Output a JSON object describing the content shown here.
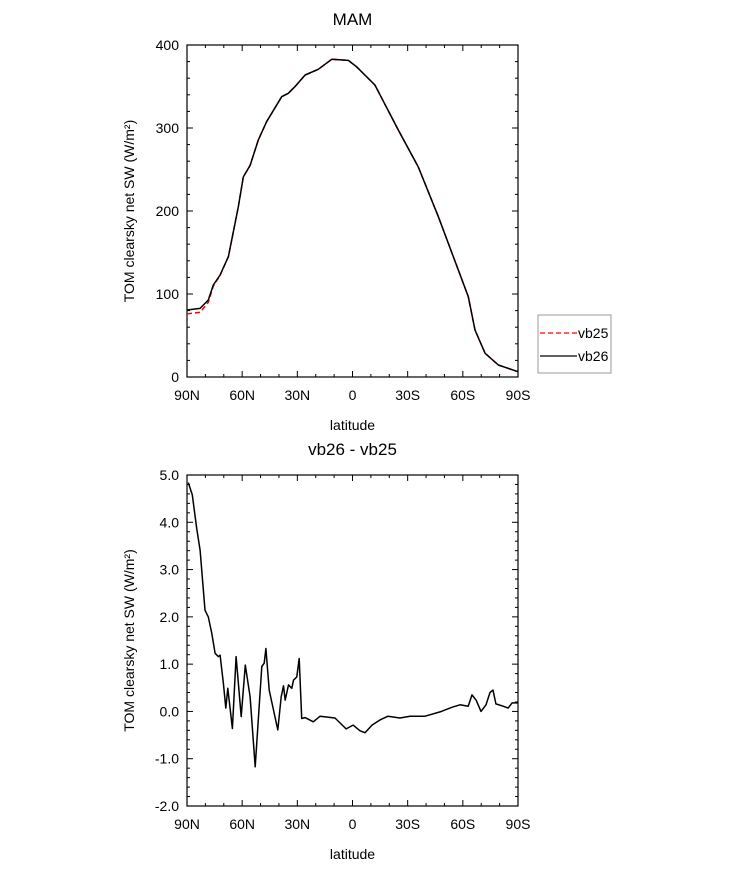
{
  "colors": {
    "vb25": "#ff0000",
    "vb26": "#000000"
  },
  "chart_data": [
    {
      "type": "line",
      "title": "MAM",
      "xlabel": "latitude",
      "ylabel": "TOM clearsky net SW (W/m²)",
      "xlim": [
        90,
        -90
      ],
      "ylim": [
        0,
        400
      ],
      "xticks": [
        90,
        60,
        30,
        0,
        -30,
        -60,
        -90
      ],
      "xtick_labels": [
        "90N",
        "60N",
        "30N",
        "0",
        "30S",
        "60S",
        "90S"
      ],
      "yticks": [
        0,
        100,
        200,
        300,
        400
      ],
      "ytick_labels": [
        "0",
        "100",
        "200",
        "300",
        "400"
      ],
      "legend": {
        "placement": "right",
        "entries": [
          "vb25",
          "vb26"
        ]
      },
      "x": [
        90,
        82.9,
        78.4,
        75.7,
        72,
        67.5,
        62.1,
        59.4,
        55.7,
        51.2,
        46.7,
        38.5,
        34.9,
        31.3,
        25.8,
        18.6,
        11.3,
        2.3,
        -2.2,
        -12.2,
        -24.9,
        -35.8,
        -46.7,
        -63,
        -66.6,
        -72.1,
        -79.3,
        -90
      ],
      "series": [
        {
          "name": "vb25",
          "style": "dashed",
          "values": [
            76,
            78,
            90,
            109.5,
            122.5,
            145,
            205,
            241,
            255,
            285.5,
            307.6,
            337.7,
            341.8,
            349.8,
            363.9,
            370.7,
            382.8,
            381.5,
            373.9,
            351.8,
            297.6,
            253,
            193,
            96.7,
            56.6,
            28.6,
            14.5,
            6.4
          ]
        },
        {
          "name": "vb26",
          "style": "solid",
          "values": [
            80.7,
            82.7,
            92.8,
            110.8,
            122.9,
            145,
            205,
            241,
            255,
            285.5,
            307.6,
            337.7,
            341.8,
            349.8,
            363.9,
            370.7,
            382.8,
            381.5,
            373.9,
            351.8,
            297.6,
            253,
            193,
            96.7,
            56.6,
            28.6,
            14.5,
            6.4
          ]
        }
      ]
    },
    {
      "type": "line",
      "title": "vb26 - vb25",
      "xlabel": "latitude",
      "ylabel": "TOM clearsky net SW (W/m²)",
      "xlim": [
        90,
        -90
      ],
      "ylim": [
        -2,
        5
      ],
      "xticks": [
        90,
        60,
        30,
        0,
        -30,
        -60,
        -90
      ],
      "xtick_labels": [
        "90N",
        "60N",
        "30N",
        "0",
        "30S",
        "60S",
        "90S"
      ],
      "yticks": [
        -2,
        -1,
        0,
        1,
        2,
        3,
        4,
        5
      ],
      "ytick_labels": [
        "-2.0",
        "-1.0",
        "0.0",
        "1.0",
        "2.0",
        "3.0",
        "4.0",
        "5.0"
      ],
      "x": [
        89.3,
        87.1,
        84.7,
        82.9,
        80.2,
        78.4,
        76.5,
        74.7,
        72.9,
        72,
        70.2,
        68.9,
        67.8,
        65.3,
        63.3,
        60.5,
        58.3,
        55.7,
        52.9,
        49.3,
        48,
        47.1,
        45.3,
        40.6,
        38.8,
        37.5,
        36.6,
        34.8,
        33,
        32.1,
        30.3,
        29,
        27.6,
        25.8,
        21.3,
        17.6,
        9.5,
        3.5,
        -0.3,
        -4.1,
        -6.8,
        -10.6,
        -15,
        -19.3,
        -25.8,
        -31.3,
        -39.5,
        -47.6,
        -54.2,
        -58.5,
        -62.9,
        -65,
        -67.2,
        -69.9,
        -72.6,
        -74.8,
        -76.4,
        -78,
        -81.9,
        -84.6,
        -86.8,
        -90
      ],
      "series": [
        {
          "name": "vb26 - vb25",
          "style": "solid",
          "values": [
            4.84,
            4.58,
            3.87,
            3.41,
            2.14,
            2.0,
            1.65,
            1.23,
            1.16,
            1.19,
            0.59,
            0.07,
            0.49,
            -0.36,
            1.16,
            -0.11,
            0.98,
            0.31,
            -1.17,
            0.95,
            1.02,
            1.33,
            0.45,
            -0.39,
            0.31,
            0.54,
            0.24,
            0.56,
            0.49,
            0.66,
            0.73,
            1.12,
            -0.15,
            -0.13,
            -0.22,
            -0.1,
            -0.14,
            -0.37,
            -0.29,
            -0.41,
            -0.45,
            -0.29,
            -0.18,
            -0.1,
            -0.14,
            -0.1,
            -0.1,
            -0.01,
            0.09,
            0.14,
            0.11,
            0.35,
            0.24,
            0.0,
            0.14,
            0.4,
            0.45,
            0.16,
            0.11,
            0.07,
            0.18,
            0.18
          ]
        }
      ]
    }
  ]
}
